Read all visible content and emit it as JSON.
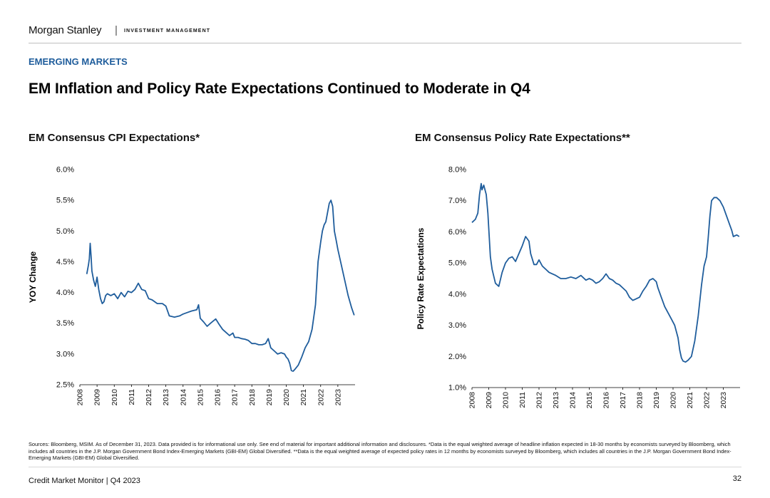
{
  "brand": {
    "name": "Morgan Stanley",
    "separator": "|",
    "division": "INVESTMENT MANAGEMENT"
  },
  "section_label": "EMERGING MARKETS",
  "page_title": "EM Inflation and Policy Rate Expectations Continued to Moderate in Q4",
  "footnote": "Sources: Bloomberg, MSIM. As of December 31, 2023. Data provided is for informational use only. See end of material for important additional information and disclosures. *Data is the equal weighted average of headline inflation expected in 18-30 months by economists surveyed by Bloomberg, which includes all countries in the J.P. Morgan Government Bond Index-Emerging Markets (GBI-EM) Global Diversified. **Data is the equal weighted average of expected policy rates in 12 months by economists surveyed by Bloomberg, which includes all countries in the J.P. Morgan Government Bond Index-Emerging Markets (GBI-EM) Global Diversified.",
  "footer": {
    "publication": "Credit Market Monitor | Q4 2023",
    "page_number": "32"
  },
  "colors": {
    "line": "#1f5d9c",
    "section": "#1f5d9c"
  },
  "chart_data": [
    {
      "type": "line",
      "title": "EM Consensus CPI Expectations*",
      "xlabel": "",
      "ylabel": "YOY Change",
      "ylim": [
        2.5,
        6.0
      ],
      "y_ticks": [
        2.5,
        3.0,
        3.5,
        4.0,
        4.5,
        5.0,
        5.5,
        6.0
      ],
      "y_tick_labels": [
        "2.5%",
        "3.0%",
        "3.5%",
        "4.0%",
        "4.5%",
        "5.0%",
        "5.5%",
        "6.0%"
      ],
      "xlim": [
        2008,
        2024
      ],
      "x_ticks": [
        2008,
        2009,
        2010,
        2011,
        2012,
        2013,
        2014,
        2015,
        2016,
        2017,
        2018,
        2019,
        2020,
        2021,
        2022,
        2023
      ],
      "x_tick_labels": [
        "2008",
        "2009",
        "2010",
        "2011",
        "2012",
        "2013",
        "2014",
        "2015",
        "2016",
        "2017",
        "2018",
        "2019",
        "2020",
        "2021",
        "2022",
        "2023"
      ],
      "grid": false,
      "series": [
        {
          "x": [
            2008.4,
            2008.5,
            2008.55,
            2008.6,
            2008.65,
            2008.7,
            2008.8,
            2008.9,
            2009.0,
            2009.1,
            2009.2,
            2009.3,
            2009.4,
            2009.5,
            2009.6,
            2009.8,
            2010.0,
            2010.2,
            2010.4,
            2010.6,
            2010.8,
            2011.0,
            2011.2,
            2011.4,
            2011.6,
            2011.8,
            2012.0,
            2012.2,
            2012.5,
            2012.8,
            2013.0,
            2013.2,
            2013.5,
            2013.8,
            2014.0,
            2014.3,
            2014.5,
            2014.8,
            2014.9,
            2015.0,
            2015.2,
            2015.4,
            2015.6,
            2015.9,
            2016.1,
            2016.3,
            2016.5,
            2016.7,
            2016.9,
            2017.0,
            2017.2,
            2017.4,
            2017.6,
            2017.8,
            2018.0,
            2018.2,
            2018.4,
            2018.6,
            2018.8,
            2018.95,
            2019.1,
            2019.3,
            2019.5,
            2019.7,
            2019.9,
            2020.0,
            2020.1,
            2020.2,
            2020.3,
            2020.4,
            2020.5,
            2020.7,
            2020.9,
            2021.1,
            2021.3,
            2021.5,
            2021.7,
            2021.85,
            2022.0,
            2022.1,
            2022.2,
            2022.3,
            2022.4,
            2022.5,
            2022.6,
            2022.7,
            2022.75,
            2022.8,
            2022.9,
            2023.0,
            2023.2,
            2023.4,
            2023.6,
            2023.8,
            2023.95
          ],
          "values": [
            4.3,
            4.45,
            4.55,
            4.8,
            4.6,
            4.35,
            4.2,
            4.1,
            4.25,
            4.05,
            3.9,
            3.82,
            3.85,
            3.95,
            3.98,
            3.95,
            3.98,
            3.9,
            4.0,
            3.93,
            4.02,
            4.0,
            4.05,
            4.15,
            4.05,
            4.03,
            3.9,
            3.88,
            3.82,
            3.82,
            3.78,
            3.62,
            3.6,
            3.62,
            3.65,
            3.68,
            3.7,
            3.72,
            3.8,
            3.58,
            3.52,
            3.45,
            3.5,
            3.57,
            3.48,
            3.4,
            3.35,
            3.3,
            3.34,
            3.27,
            3.27,
            3.25,
            3.24,
            3.22,
            3.17,
            3.17,
            3.15,
            3.15,
            3.17,
            3.25,
            3.1,
            3.05,
            3.0,
            3.02,
            3.0,
            2.95,
            2.92,
            2.85,
            2.73,
            2.72,
            2.75,
            2.82,
            2.95,
            3.1,
            3.2,
            3.4,
            3.8,
            4.5,
            4.82,
            5.0,
            5.1,
            5.15,
            5.3,
            5.45,
            5.5,
            5.4,
            5.2,
            5.0,
            4.85,
            4.7,
            4.45,
            4.2,
            3.95,
            3.75,
            3.63
          ]
        }
      ]
    },
    {
      "type": "line",
      "title": "EM Consensus Policy Rate Expectations**",
      "xlabel": "",
      "ylabel": "Policy Rate Expectations",
      "ylim": [
        1.0,
        8.0
      ],
      "y_ticks": [
        1.0,
        2.0,
        3.0,
        4.0,
        5.0,
        6.0,
        7.0,
        8.0
      ],
      "y_tick_labels": [
        "1.0%",
        "2.0%",
        "3.0%",
        "4.0%",
        "5.0%",
        "6.0%",
        "7.0%",
        "8.0%"
      ],
      "xlim": [
        2008,
        2024
      ],
      "x_ticks": [
        2008,
        2009,
        2010,
        2011,
        2012,
        2013,
        2014,
        2015,
        2016,
        2017,
        2018,
        2019,
        2020,
        2021,
        2022,
        2023
      ],
      "x_tick_labels": [
        "2008",
        "2009",
        "2010",
        "2011",
        "2012",
        "2013",
        "2014",
        "2015",
        "2016",
        "2017",
        "2018",
        "2019",
        "2020",
        "2021",
        "2022",
        "2023"
      ],
      "grid": false,
      "series": [
        {
          "x": [
            2008.0,
            2008.2,
            2008.35,
            2008.45,
            2008.55,
            2008.6,
            2008.7,
            2008.85,
            2008.95,
            2009.1,
            2009.2,
            2009.4,
            2009.6,
            2009.8,
            2010.0,
            2010.2,
            2010.4,
            2010.6,
            2010.8,
            2011.0,
            2011.2,
            2011.4,
            2011.5,
            2011.7,
            2011.85,
            2012.0,
            2012.2,
            2012.4,
            2012.6,
            2012.8,
            2013.0,
            2013.3,
            2013.6,
            2013.9,
            2014.2,
            2014.5,
            2014.8,
            2015.0,
            2015.2,
            2015.4,
            2015.6,
            2015.8,
            2016.0,
            2016.2,
            2016.4,
            2016.6,
            2016.8,
            2017.0,
            2017.2,
            2017.4,
            2017.6,
            2017.8,
            2018.0,
            2018.2,
            2018.4,
            2018.6,
            2018.8,
            2019.0,
            2019.1,
            2019.3,
            2019.5,
            2019.7,
            2019.9,
            2020.1,
            2020.3,
            2020.4,
            2020.5,
            2020.6,
            2020.75,
            2020.9,
            2021.1,
            2021.3,
            2021.5,
            2021.7,
            2021.85,
            2022.0,
            2022.1,
            2022.2,
            2022.3,
            2022.45,
            2022.6,
            2022.8,
            2023.0,
            2023.2,
            2023.4,
            2023.5,
            2023.6,
            2023.8,
            2023.95
          ],
          "values": [
            6.3,
            6.4,
            6.6,
            7.2,
            7.55,
            7.35,
            7.5,
            7.2,
            6.6,
            5.2,
            4.8,
            4.35,
            4.25,
            4.7,
            5.0,
            5.15,
            5.2,
            5.05,
            5.3,
            5.55,
            5.85,
            5.7,
            5.3,
            4.95,
            4.95,
            5.1,
            4.9,
            4.8,
            4.7,
            4.65,
            4.6,
            4.5,
            4.5,
            4.55,
            4.5,
            4.6,
            4.45,
            4.5,
            4.45,
            4.35,
            4.4,
            4.5,
            4.65,
            4.5,
            4.45,
            4.35,
            4.3,
            4.2,
            4.1,
            3.9,
            3.8,
            3.85,
            3.9,
            4.1,
            4.25,
            4.45,
            4.5,
            4.4,
            4.2,
            3.9,
            3.6,
            3.4,
            3.2,
            3.0,
            2.6,
            2.2,
            1.95,
            1.85,
            1.82,
            1.88,
            2.0,
            2.5,
            3.3,
            4.3,
            4.9,
            5.2,
            5.8,
            6.5,
            7.0,
            7.1,
            7.1,
            7.0,
            6.8,
            6.5,
            6.2,
            6.05,
            5.85,
            5.9,
            5.85
          ]
        }
      ]
    }
  ]
}
